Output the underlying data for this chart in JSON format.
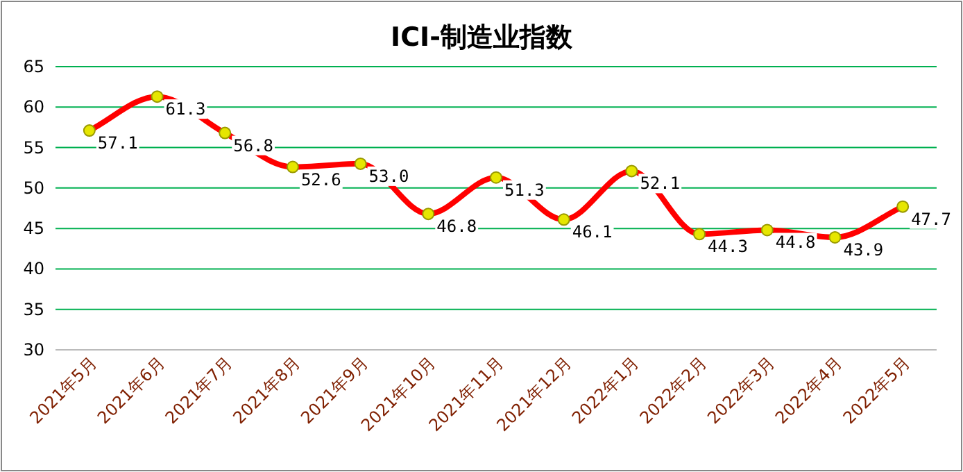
{
  "chart_data": {
    "type": "line",
    "title": "ICI-制造业指数",
    "categories": [
      "2021年5月",
      "2021年6月",
      "2021年7月",
      "2021年8月",
      "2021年9月",
      "2021年10月",
      "2021年11月",
      "2021年12月",
      "2022年1月",
      "2022年2月",
      "2022年3月",
      "2022年4月",
      "2022年5月"
    ],
    "series": [
      {
        "color": "#ff0000",
        "values": [
          57.1,
          61.3,
          56.8,
          52.6,
          53.0,
          46.8,
          51.3,
          46.1,
          52.1,
          44.3,
          44.8,
          43.9,
          47.7
        ],
        "value_labels": [
          "57.1",
          "61.3",
          "56.8",
          "52.6",
          "53.0",
          "46.8",
          "51.3",
          "46.1",
          "52.1",
          "44.3",
          "44.8",
          "43.9",
          "47.7"
        ]
      }
    ],
    "ylim": [
      30,
      65
    ],
    "yticks": [
      30,
      35,
      40,
      45,
      50,
      55,
      60,
      65
    ],
    "grid": "y",
    "marker": "circle",
    "line_style": "solid"
  }
}
